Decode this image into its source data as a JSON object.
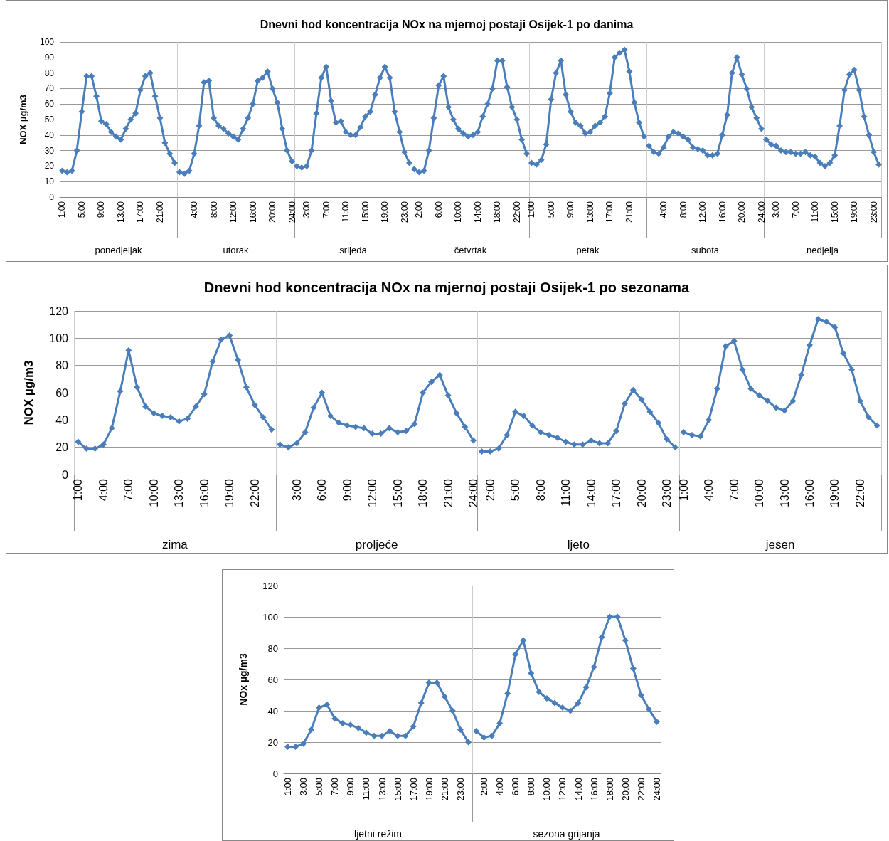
{
  "chart_data": [
    {
      "type": "line",
      "title": "Dnevni hod koncentracija NOx na mjernoj postaji Osijek-1 po danima",
      "ylabel": "NOX µg/m3",
      "ylim": [
        0,
        100
      ],
      "yticks": [
        0,
        10,
        20,
        30,
        40,
        50,
        60,
        70,
        80,
        90,
        100
      ],
      "grid": "y",
      "marker": "diamond",
      "annotations": [
        "ponedjeljak",
        "utorak",
        "srijeda",
        "četvrtak",
        "petak",
        "subota",
        "nedjelja"
      ],
      "categories": [
        "1:00",
        null,
        null,
        null,
        "5:00",
        null,
        null,
        null,
        "9:00",
        null,
        null,
        null,
        "13:00",
        null,
        null,
        null,
        "17:00",
        null,
        null,
        null,
        "21:00",
        null,
        null,
        null,
        null,
        null,
        null,
        "4:00",
        null,
        null,
        null,
        "8:00",
        null,
        null,
        null,
        "12:00",
        null,
        null,
        null,
        "16:00",
        null,
        null,
        null,
        "20:00",
        null,
        null,
        null,
        "24:00",
        null,
        null,
        "3:00",
        null,
        null,
        null,
        "7:00",
        null,
        null,
        null,
        "11:00",
        null,
        null,
        null,
        "15:00",
        null,
        null,
        null,
        "19:00",
        null,
        null,
        null,
        "23:00",
        null,
        null,
        "2:00",
        null,
        null,
        null,
        "6:00",
        null,
        null,
        null,
        "10:00",
        null,
        null,
        null,
        "14:00",
        null,
        null,
        null,
        "18:00",
        null,
        null,
        null,
        "22:00",
        null,
        null,
        "1:00",
        null,
        null,
        null,
        "5:00",
        null,
        null,
        null,
        "9:00",
        null,
        null,
        null,
        "13:00",
        null,
        null,
        null,
        "17:00",
        null,
        null,
        null,
        "21:00",
        null,
        null,
        null,
        null,
        null,
        null,
        "4:00",
        null,
        null,
        null,
        "8:00",
        null,
        null,
        null,
        "12:00",
        null,
        null,
        null,
        "16:00",
        null,
        null,
        null,
        "20:00",
        null,
        null,
        null,
        "24:00",
        null,
        null,
        "3:00",
        null,
        null,
        null,
        "7:00",
        null,
        null,
        null,
        "11:00",
        null,
        null,
        null,
        "15:00",
        null,
        null,
        null,
        "19:00",
        null,
        null,
        null,
        "23:00",
        null
      ],
      "series": [
        {
          "color": "#4a7ebb",
          "values": [
            17,
            16,
            17,
            30,
            55,
            78,
            78,
            65,
            49,
            47,
            42,
            39,
            37,
            44,
            50,
            54,
            69,
            78,
            80,
            65,
            51,
            35,
            28,
            22,
            null,
            null,
            null,
            null,
            null,
            null,
            null,
            null,
            null,
            null,
            null,
            null,
            null,
            null,
            null,
            null,
            null,
            null,
            null,
            null,
            null,
            null,
            null,
            null,
            null,
            null,
            null,
            null,
            null,
            null,
            null,
            null,
            null,
            null,
            null,
            null,
            null,
            null,
            null,
            null,
            null,
            null,
            null,
            null,
            null,
            null,
            null,
            null,
            null,
            null,
            null,
            null,
            null,
            null,
            null,
            null,
            null,
            null,
            null,
            null,
            null,
            null,
            null,
            null,
            null,
            null,
            null,
            null,
            null,
            null,
            null,
            null,
            null,
            null,
            null,
            null,
            null,
            null,
            null,
            null,
            null,
            null,
            null,
            null,
            null,
            null,
            null,
            null,
            null,
            null,
            null,
            null,
            null,
            null,
            null,
            null,
            null,
            null,
            null,
            null,
            null,
            null,
            null,
            null,
            null,
            null,
            null,
            null,
            null,
            null,
            null,
            null,
            null,
            null,
            null,
            null,
            null,
            null,
            null,
            null,
            null,
            null,
            null,
            null,
            null,
            null,
            null,
            null,
            null,
            null,
            null,
            null,
            null,
            null,
            null,
            null,
            null,
            null,
            null,
            null,
            null,
            null,
            null,
            null
          ]
        },
        {
          "color": "#4a7ebb",
          "values": [
            null,
            null,
            null,
            null,
            null,
            null,
            null,
            null,
            null,
            null,
            null,
            null,
            null,
            null,
            null,
            null,
            null,
            null,
            null,
            null,
            null,
            null,
            null,
            null,
            16,
            15,
            17,
            28,
            46,
            74,
            75,
            51,
            46,
            44,
            41,
            39,
            37,
            44,
            51,
            60,
            75,
            77,
            81,
            70,
            61,
            44,
            30,
            23,
            null,
            null,
            null,
            null,
            null,
            null,
            null,
            null,
            null,
            null,
            null,
            null,
            null,
            null,
            null,
            null,
            null,
            null,
            null,
            null,
            null,
            null,
            null,
            null,
            null,
            null,
            null,
            null,
            null,
            null,
            null,
            null,
            null,
            null,
            null,
            null,
            null,
            null,
            null,
            null,
            null,
            null,
            null,
            null,
            null,
            null,
            null,
            null,
            null,
            null,
            null,
            null,
            null,
            null,
            null,
            null,
            null,
            null,
            null,
            null,
            null,
            null,
            null,
            null,
            null,
            null,
            null,
            null,
            null,
            null,
            null,
            null,
            null,
            null,
            null,
            null,
            null,
            null,
            null,
            null,
            null,
            null,
            null,
            null,
            null,
            null,
            null,
            null,
            null,
            null,
            null,
            null,
            null,
            null,
            null,
            null,
            null,
            null,
            null,
            null,
            null,
            null,
            null,
            null,
            null,
            null,
            null,
            null,
            null,
            null,
            null,
            null,
            null,
            null,
            null,
            null,
            null,
            null,
            null,
            null
          ]
        },
        {
          "color": "#4a7ebb",
          "values": [
            null,
            null,
            null,
            null,
            null,
            null,
            null,
            null,
            null,
            null,
            null,
            null,
            null,
            null,
            null,
            null,
            null,
            null,
            null,
            null,
            null,
            null,
            null,
            null,
            null,
            null,
            null,
            null,
            null,
            null,
            null,
            null,
            null,
            null,
            null,
            null,
            null,
            null,
            null,
            null,
            null,
            null,
            null,
            null,
            null,
            null,
            null,
            null,
            20,
            19,
            20,
            30,
            54,
            77,
            84,
            62,
            48,
            49,
            42,
            40,
            40,
            45,
            52,
            55,
            66,
            77,
            84,
            77,
            55,
            42,
            29,
            22,
            null,
            null,
            null,
            null,
            null,
            null,
            null,
            null,
            null,
            null,
            null,
            null,
            null,
            null,
            null,
            null,
            null,
            null,
            null,
            null,
            null,
            null,
            null,
            null,
            null,
            null,
            null,
            null,
            null,
            null,
            null,
            null,
            null,
            null,
            null,
            null,
            null,
            null,
            null,
            null,
            null,
            null,
            null,
            null,
            null,
            null,
            null,
            null,
            null,
            null,
            null,
            null,
            null,
            null,
            null,
            null,
            null,
            null,
            null,
            null,
            null,
            null,
            null,
            null,
            null,
            null,
            null,
            null,
            null,
            null,
            null,
            null,
            null,
            null,
            null,
            null,
            null,
            null,
            null,
            null,
            null,
            null,
            null,
            null,
            null,
            null,
            null,
            null,
            null,
            null,
            null,
            null,
            null,
            null,
            null,
            null
          ]
        },
        {
          "color": "#4a7ebb",
          "values": [
            null,
            null,
            null,
            null,
            null,
            null,
            null,
            null,
            null,
            null,
            null,
            null,
            null,
            null,
            null,
            null,
            null,
            null,
            null,
            null,
            null,
            null,
            null,
            null,
            null,
            null,
            null,
            null,
            null,
            null,
            null,
            null,
            null,
            null,
            null,
            null,
            null,
            null,
            null,
            null,
            null,
            null,
            null,
            null,
            null,
            null,
            null,
            null,
            null,
            null,
            null,
            null,
            null,
            null,
            null,
            null,
            null,
            null,
            null,
            null,
            null,
            null,
            null,
            null,
            null,
            null,
            null,
            null,
            null,
            null,
            null,
            null,
            18,
            16,
            17,
            30,
            51,
            72,
            78,
            58,
            50,
            44,
            41,
            39,
            40,
            42,
            52,
            60,
            70,
            88,
            88,
            71,
            58,
            50,
            37,
            28,
            null,
            null,
            null,
            null,
            null,
            null,
            null,
            null,
            null,
            null,
            null,
            null,
            null,
            null,
            null,
            null,
            null,
            null,
            null,
            null,
            null,
            null,
            null,
            null,
            null,
            null,
            null,
            null,
            null,
            null,
            null,
            null,
            null,
            null,
            null,
            null,
            null,
            null,
            null,
            null,
            null,
            null,
            null,
            null,
            null,
            null,
            null,
            null,
            null,
            null,
            null,
            null,
            null,
            null,
            null,
            null,
            null,
            null,
            null,
            null,
            null,
            null,
            null,
            null,
            null,
            null,
            null,
            null,
            null,
            null,
            null,
            null
          ]
        },
        {
          "color": "#4a7ebb",
          "values": [
            null,
            null,
            null,
            null,
            null,
            null,
            null,
            null,
            null,
            null,
            null,
            null,
            null,
            null,
            null,
            null,
            null,
            null,
            null,
            null,
            null,
            null,
            null,
            null,
            null,
            null,
            null,
            null,
            null,
            null,
            null,
            null,
            null,
            null,
            null,
            null,
            null,
            null,
            null,
            null,
            null,
            null,
            null,
            null,
            null,
            null,
            null,
            null,
            null,
            null,
            null,
            null,
            null,
            null,
            null,
            null,
            null,
            null,
            null,
            null,
            null,
            null,
            null,
            null,
            null,
            null,
            null,
            null,
            null,
            null,
            null,
            null,
            null,
            null,
            null,
            null,
            null,
            null,
            null,
            null,
            null,
            null,
            null,
            null,
            null,
            null,
            null,
            null,
            null,
            null,
            null,
            null,
            null,
            null,
            null,
            null,
            22,
            21,
            24,
            34,
            63,
            80,
            88,
            66,
            55,
            48,
            46,
            41,
            42,
            46,
            48,
            52,
            67,
            90,
            93,
            95,
            81,
            61,
            48,
            39,
            null,
            null,
            null,
            null,
            null,
            null,
            null,
            null,
            null,
            null,
            null,
            null,
            null,
            null,
            null,
            null,
            null,
            null,
            null,
            null,
            null,
            null,
            null,
            null,
            null,
            null,
            null,
            null,
            null,
            null,
            null,
            null,
            null,
            null,
            null,
            null,
            null,
            null,
            null,
            null,
            null,
            null,
            null,
            null,
            null,
            null,
            null,
            null
          ]
        },
        {
          "color": "#4a7ebb",
          "values": [
            null,
            null,
            null,
            null,
            null,
            null,
            null,
            null,
            null,
            null,
            null,
            null,
            null,
            null,
            null,
            null,
            null,
            null,
            null,
            null,
            null,
            null,
            null,
            null,
            null,
            null,
            null,
            null,
            null,
            null,
            null,
            null,
            null,
            null,
            null,
            null,
            null,
            null,
            null,
            null,
            null,
            null,
            null,
            null,
            null,
            null,
            null,
            null,
            null,
            null,
            null,
            null,
            null,
            null,
            null,
            null,
            null,
            null,
            null,
            null,
            null,
            null,
            null,
            null,
            null,
            null,
            null,
            null,
            null,
            null,
            null,
            null,
            null,
            null,
            null,
            null,
            null,
            null,
            null,
            null,
            null,
            null,
            null,
            null,
            null,
            null,
            null,
            null,
            null,
            null,
            null,
            null,
            null,
            null,
            null,
            null,
            null,
            null,
            null,
            null,
            null,
            null,
            null,
            null,
            null,
            null,
            null,
            null,
            null,
            null,
            null,
            null,
            null,
            null,
            null,
            null,
            null,
            null,
            null,
            null,
            33,
            29,
            28,
            32,
            39,
            42,
            41,
            39,
            37,
            32,
            31,
            30,
            27,
            27,
            28,
            40,
            53,
            80,
            90,
            79,
            70,
            58,
            51,
            44,
            null,
            null,
            null,
            null,
            null,
            null,
            null,
            null,
            null,
            null,
            null,
            null,
            null,
            null,
            null,
            null,
            null,
            null,
            null,
            null,
            null,
            null,
            null,
            null
          ]
        },
        {
          "color": "#4a7ebb",
          "values": [
            null,
            null,
            null,
            null,
            null,
            null,
            null,
            null,
            null,
            null,
            null,
            null,
            null,
            null,
            null,
            null,
            null,
            null,
            null,
            null,
            null,
            null,
            null,
            null,
            null,
            null,
            null,
            null,
            null,
            null,
            null,
            null,
            null,
            null,
            null,
            null,
            null,
            null,
            null,
            null,
            null,
            null,
            null,
            null,
            null,
            null,
            null,
            null,
            null,
            null,
            null,
            null,
            null,
            null,
            null,
            null,
            null,
            null,
            null,
            null,
            null,
            null,
            null,
            null,
            null,
            null,
            null,
            null,
            null,
            null,
            null,
            null,
            null,
            null,
            null,
            null,
            null,
            null,
            null,
            null,
            null,
            null,
            null,
            null,
            null,
            null,
            null,
            null,
            null,
            null,
            null,
            null,
            null,
            null,
            null,
            null,
            null,
            null,
            null,
            null,
            null,
            null,
            null,
            null,
            null,
            null,
            null,
            null,
            null,
            null,
            null,
            null,
            null,
            null,
            null,
            null,
            null,
            null,
            null,
            null,
            null,
            null,
            null,
            null,
            null,
            null,
            null,
            null,
            null,
            null,
            null,
            null,
            null,
            null,
            null,
            null,
            null,
            null,
            null,
            null,
            null,
            null,
            null,
            null,
            37,
            34,
            33,
            30,
            29,
            29,
            28,
            28,
            29,
            27,
            26,
            22,
            20,
            22,
            27,
            46,
            69,
            79,
            82,
            69,
            52,
            40,
            29,
            21
          ]
        }
      ]
    },
    {
      "type": "line",
      "title": "Dnevni hod koncentracija NOx na mjernoj postaji Osijek-1 po sezonama",
      "ylabel": "NOX µg/m3",
      "ylim": [
        0,
        120
      ],
      "yticks": [
        0,
        20,
        40,
        60,
        80,
        100,
        120
      ],
      "grid": "y",
      "marker": "diamond",
      "annotations": [
        "zima",
        "proljeće",
        "ljeto",
        "jesen"
      ],
      "categories": [
        "1:00",
        null,
        null,
        "4:00",
        null,
        null,
        "7:00",
        null,
        null,
        "10:00",
        null,
        null,
        "13:00",
        null,
        null,
        "16:00",
        null,
        null,
        "19:00",
        null,
        null,
        "22:00",
        null,
        null,
        null,
        null,
        "3:00",
        null,
        null,
        "6:00",
        null,
        null,
        "9:00",
        null,
        null,
        "12:00",
        null,
        null,
        "15:00",
        null,
        null,
        "18:00",
        null,
        null,
        "21:00",
        null,
        null,
        "24:00",
        null,
        "2:00",
        null,
        null,
        "5:00",
        null,
        null,
        "8:00",
        null,
        null,
        "11:00",
        null,
        null,
        "14:00",
        null,
        null,
        "17:00",
        null,
        null,
        "20:00",
        null,
        null,
        "23:00",
        null,
        "1:00",
        null,
        null,
        "4:00",
        null,
        null,
        "7:00",
        null,
        null,
        "10:00",
        null,
        null,
        "13:00",
        null,
        null,
        "16:00",
        null,
        null,
        "19:00",
        null,
        null,
        "22:00",
        null,
        null
      ],
      "series": [
        {
          "color": "#4a7ebb",
          "values": [
            24,
            19,
            19,
            22,
            34,
            61,
            91,
            64,
            50,
            45,
            43,
            42,
            39,
            41,
            50,
            59,
            83,
            99,
            102,
            84,
            64,
            51,
            42,
            33,
            null,
            null,
            null,
            null,
            null,
            null,
            null,
            null,
            null,
            null,
            null,
            null,
            null,
            null,
            null,
            null,
            null,
            null,
            null,
            null,
            null,
            null,
            null,
            null,
            null,
            null,
            null,
            null,
            null,
            null,
            null,
            null,
            null,
            null,
            null,
            null,
            null,
            null,
            null,
            null,
            null,
            null,
            null,
            null,
            null,
            null,
            null,
            null,
            null,
            null,
            null,
            null,
            null,
            null,
            null,
            null,
            null,
            null,
            null,
            null,
            null,
            null,
            null,
            null,
            null,
            null,
            null,
            null,
            null,
            null,
            null,
            null
          ]
        },
        {
          "color": "#4a7ebb",
          "values": [
            null,
            null,
            null,
            null,
            null,
            null,
            null,
            null,
            null,
            null,
            null,
            null,
            null,
            null,
            null,
            null,
            null,
            null,
            null,
            null,
            null,
            null,
            null,
            null,
            22,
            20,
            23,
            31,
            49,
            60,
            43,
            38,
            36,
            35,
            34,
            30,
            30,
            34,
            31,
            32,
            37,
            60,
            68,
            73,
            58,
            45,
            35,
            25,
            null,
            null,
            null,
            null,
            null,
            null,
            null,
            null,
            null,
            null,
            null,
            null,
            null,
            null,
            null,
            null,
            null,
            null,
            null,
            null,
            null,
            null,
            null,
            null,
            null,
            null,
            null,
            null,
            null,
            null,
            null,
            null,
            null,
            null,
            null,
            null,
            null,
            null,
            null,
            null,
            null,
            null,
            null,
            null,
            null,
            null,
            null,
            null
          ]
        },
        {
          "color": "#4a7ebb",
          "values": [
            null,
            null,
            null,
            null,
            null,
            null,
            null,
            null,
            null,
            null,
            null,
            null,
            null,
            null,
            null,
            null,
            null,
            null,
            null,
            null,
            null,
            null,
            null,
            null,
            null,
            null,
            null,
            null,
            null,
            null,
            null,
            null,
            null,
            null,
            null,
            null,
            null,
            null,
            null,
            null,
            null,
            null,
            null,
            null,
            null,
            null,
            null,
            null,
            17,
            17,
            19,
            29,
            46,
            43,
            36,
            31,
            29,
            27,
            24,
            22,
            22,
            25,
            23,
            23,
            32,
            52,
            62,
            55,
            46,
            38,
            26,
            20,
            null,
            null,
            null,
            null,
            null,
            null,
            null,
            null,
            null,
            null,
            null,
            null,
            null,
            null,
            null,
            null,
            null,
            null,
            null,
            null,
            null,
            null,
            null,
            null
          ]
        },
        {
          "color": "#4a7ebb",
          "values": [
            null,
            null,
            null,
            null,
            null,
            null,
            null,
            null,
            null,
            null,
            null,
            null,
            null,
            null,
            null,
            null,
            null,
            null,
            null,
            null,
            null,
            null,
            null,
            null,
            null,
            null,
            null,
            null,
            null,
            null,
            null,
            null,
            null,
            null,
            null,
            null,
            null,
            null,
            null,
            null,
            null,
            null,
            null,
            null,
            null,
            null,
            null,
            null,
            null,
            null,
            null,
            null,
            null,
            null,
            null,
            null,
            null,
            null,
            null,
            null,
            null,
            null,
            null,
            null,
            null,
            null,
            null,
            null,
            null,
            null,
            null,
            null,
            31,
            29,
            28,
            40,
            63,
            94,
            98,
            77,
            63,
            58,
            54,
            49,
            47,
            54,
            73,
            95,
            114,
            112,
            108,
            89,
            77,
            54,
            42,
            36
          ]
        }
      ]
    },
    {
      "type": "line",
      "ylabel": "NOx µg/m3",
      "ylim": [
        0,
        120
      ],
      "yticks": [
        0,
        20,
        40,
        60,
        80,
        100,
        120
      ],
      "grid": "y",
      "marker": "diamond",
      "annotations": [
        "ljetni režim",
        "sezona grijanja"
      ],
      "categories": [
        "1:00",
        null,
        "3:00",
        null,
        "5:00",
        null,
        "7:00",
        null,
        "9:00",
        null,
        "11:00",
        null,
        "13:00",
        null,
        "15:00",
        null,
        "17:00",
        null,
        "19:00",
        null,
        "21:00",
        null,
        "23:00",
        null,
        null,
        "2:00",
        null,
        "4:00",
        null,
        "6:00",
        null,
        "8:00",
        null,
        "10:00",
        null,
        "12:00",
        null,
        "14:00",
        null,
        "16:00",
        null,
        "18:00",
        null,
        "20:00",
        null,
        "22:00",
        null,
        "24:00"
      ],
      "series": [
        {
          "color": "#4a7ebb",
          "values": [
            17,
            17,
            19,
            28,
            42,
            44,
            35,
            32,
            31,
            29,
            26,
            24,
            24,
            27,
            24,
            24,
            30,
            45,
            58,
            58,
            49,
            40,
            28,
            20,
            null,
            null,
            null,
            null,
            null,
            null,
            null,
            null,
            null,
            null,
            null,
            null,
            null,
            null,
            null,
            null,
            null,
            null,
            null,
            null,
            null,
            null,
            null,
            null
          ]
        },
        {
          "color": "#4a7ebb",
          "values": [
            null,
            null,
            null,
            null,
            null,
            null,
            null,
            null,
            null,
            null,
            null,
            null,
            null,
            null,
            null,
            null,
            null,
            null,
            null,
            null,
            null,
            null,
            null,
            null,
            27,
            23,
            24,
            32,
            51,
            76,
            85,
            64,
            52,
            48,
            45,
            42,
            40,
            45,
            55,
            68,
            87,
            100,
            100,
            85,
            67,
            50,
            41,
            33
          ]
        }
      ]
    }
  ]
}
